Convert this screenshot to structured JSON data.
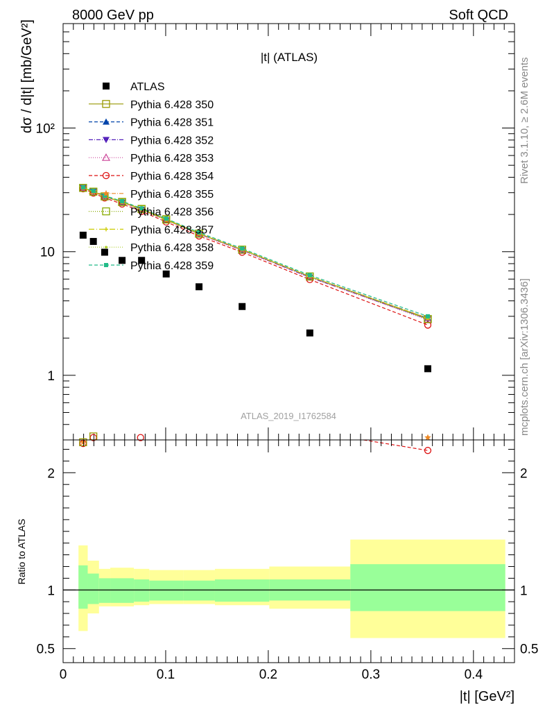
{
  "header": {
    "left": "8000 GeV pp",
    "right": "Soft QCD"
  },
  "side_text": {
    "top": "Rivet 3.1.10, ≥ 2.6M events",
    "bottom": "mcplots.cern.ch [arXiv:1306.3436]"
  },
  "colors": {
    "data": "#000000",
    "ratio_band_inner": "#99ff99",
    "ratio_band_outer": "#ffff99",
    "c350": "#999900",
    "c351": "#0044aa",
    "c352": "#5522bb",
    "c353": "#cc4499",
    "c354": "#dd1111",
    "c355": "#ee8822",
    "c356": "#88aa00",
    "c357": "#cccc00",
    "c358": "#aacc22",
    "c359": "#22bb88"
  },
  "chart_data": [
    {
      "type": "scatter",
      "title": "|t| (ATLAS)",
      "ylabel": "dσ / d|t| [mb/GeV²]",
      "watermark": "ATLAS_2019_I1762584",
      "log_y": true,
      "xlim": [
        0,
        0.44
      ],
      "ylim": [
        0.3,
        700
      ],
      "y_ticks": [
        "1",
        "10",
        "10²"
      ],
      "legend_position": "top-left",
      "data": {
        "name": "ATLAS",
        "x": [
          0.0195,
          0.0295,
          0.0405,
          0.0575,
          0.0765,
          0.1005,
          0.1325,
          0.1745,
          0.2405,
          0.3555
        ],
        "y": [
          13.6,
          12.1,
          9.9,
          8.5,
          8.5,
          6.6,
          5.2,
          3.6,
          2.2,
          1.13
        ]
      },
      "series": [
        {
          "name": "Pythia 6.428 350",
          "marker": "open-square",
          "dash": "solid",
          "x": [
            0.0195,
            0.0295,
            0.0405,
            0.0575,
            0.0765,
            0.1005,
            0.1325,
            0.1745,
            0.2405,
            0.3555
          ],
          "y": [
            32.8,
            30.6,
            28.0,
            25.3,
            22.2,
            18.3,
            14.0,
            10.4,
            6.3,
            2.85
          ]
        },
        {
          "name": "Pythia 6.428 351",
          "marker": "filled-triangle-up",
          "dash": "5,3",
          "x": [
            0.0195,
            0.0295,
            0.0405,
            0.0575,
            0.0765,
            0.1005,
            0.1325,
            0.1745,
            0.2405,
            0.3555
          ],
          "y": [
            33.0,
            30.8,
            28.1,
            25.2,
            22.0,
            18.1,
            14.0,
            10.4,
            6.3,
            2.9
          ]
        },
        {
          "name": "Pythia 6.428 352",
          "marker": "filled-triangle-down",
          "dash": "6,2,1,2",
          "x": [
            0.0195,
            0.0295,
            0.0405,
            0.0575,
            0.0765,
            0.1005,
            0.1325,
            0.1745,
            0.2405,
            0.3555
          ],
          "y": [
            32.9,
            30.7,
            28.0,
            25.1,
            21.9,
            18.0,
            13.9,
            10.3,
            6.2,
            2.85
          ]
        },
        {
          "name": "Pythia 6.428 353",
          "marker": "open-triangle-up",
          "dash": "1,2",
          "x": [
            0.0195,
            0.0295,
            0.0405,
            0.0575,
            0.0765,
            0.1005,
            0.1325,
            0.1745,
            0.2405,
            0.3555
          ],
          "y": [
            32.7,
            30.5,
            27.8,
            25.0,
            21.8,
            18.0,
            13.8,
            10.2,
            6.2,
            2.8
          ]
        },
        {
          "name": "Pythia 6.428 354",
          "marker": "open-circle",
          "dash": "5,3",
          "x": [
            0.0195,
            0.0295,
            0.0405,
            0.0575,
            0.0765,
            0.1005,
            0.1325,
            0.1745,
            0.2405,
            0.3555
          ],
          "y": [
            32.3,
            29.8,
            27.2,
            24.3,
            21.2,
            17.4,
            13.4,
            9.9,
            5.95,
            2.55
          ]
        },
        {
          "name": "Pythia 6.428 355",
          "marker": "star",
          "dash": "6,2,1,2",
          "x": [
            0.0195,
            0.0295,
            0.0405,
            0.0575,
            0.0765,
            0.1005,
            0.1325,
            0.1745,
            0.2405,
            0.3555
          ],
          "y": [
            32.8,
            30.6,
            28.0,
            25.2,
            22.0,
            18.1,
            14.0,
            10.4,
            6.3,
            2.9
          ]
        },
        {
          "name": "Pythia 6.428 356",
          "marker": "open-square",
          "dash": "1,2",
          "x": [
            0.0195,
            0.0295,
            0.0405,
            0.0575,
            0.0765,
            0.1005,
            0.1325,
            0.1745,
            0.2405,
            0.3555
          ],
          "y": [
            32.8,
            30.6,
            28.0,
            25.2,
            22.1,
            18.2,
            14.0,
            10.4,
            6.3,
            2.85
          ]
        },
        {
          "name": "Pythia 6.428 357",
          "marker": "small-cross",
          "dash": "8,3,1,3",
          "x": [
            0.0195,
            0.0295,
            0.0405,
            0.0575,
            0.0765,
            0.1005,
            0.1325,
            0.1745,
            0.2405,
            0.3555
          ],
          "y": [
            32.8,
            30.6,
            28.0,
            25.2,
            22.0,
            18.1,
            14.0,
            10.4,
            6.3,
            2.88
          ]
        },
        {
          "name": "Pythia 6.428 358",
          "marker": "small-dot",
          "dash": "1,2",
          "x": [
            0.0195,
            0.0295,
            0.0405,
            0.0575,
            0.0765,
            0.1005,
            0.1325,
            0.1745,
            0.2405,
            0.3555
          ],
          "y": [
            32.8,
            30.6,
            28.0,
            25.2,
            22.0,
            18.1,
            14.0,
            10.4,
            6.3,
            2.88
          ]
        },
        {
          "name": "Pythia 6.428 359",
          "marker": "filled-square-small",
          "dash": "5,3",
          "x": [
            0.0195,
            0.0295,
            0.0405,
            0.0575,
            0.0765,
            0.1005,
            0.1325,
            0.1745,
            0.2405,
            0.3555
          ],
          "y": [
            33.2,
            31.0,
            28.4,
            25.6,
            22.4,
            18.5,
            14.3,
            10.6,
            6.45,
            3.0
          ]
        }
      ]
    },
    {
      "type": "area",
      "xlabel": "|t| [GeV²]",
      "ylabel": "Ratio to ATLAS",
      "xlim": [
        0,
        0.44
      ],
      "ylim": [
        0.38,
        2.28
      ],
      "x_ticks": [
        "0",
        "0.1",
        "0.2",
        "0.3",
        "0.4"
      ],
      "y_ticks": [
        "0.5",
        "1",
        "2"
      ],
      "reference_line": 1,
      "bands": [
        {
          "x0": 0.015,
          "x1": 0.024,
          "inner": [
            0.84,
            1.21
          ],
          "outer": [
            0.65,
            1.38
          ]
        },
        {
          "x0": 0.024,
          "x1": 0.035,
          "inner": [
            0.88,
            1.14
          ],
          "outer": [
            0.8,
            1.25
          ]
        },
        {
          "x0": 0.035,
          "x1": 0.046,
          "inner": [
            0.89,
            1.1
          ],
          "outer": [
            0.86,
            1.18
          ]
        },
        {
          "x0": 0.046,
          "x1": 0.069,
          "inner": [
            0.89,
            1.1
          ],
          "outer": [
            0.86,
            1.19
          ]
        },
        {
          "x0": 0.069,
          "x1": 0.084,
          "inner": [
            0.9,
            1.09
          ],
          "outer": [
            0.87,
            1.18
          ]
        },
        {
          "x0": 0.084,
          "x1": 0.117,
          "inner": [
            0.91,
            1.08
          ],
          "outer": [
            0.88,
            1.17
          ]
        },
        {
          "x0": 0.117,
          "x1": 0.148,
          "inner": [
            0.91,
            1.08
          ],
          "outer": [
            0.88,
            1.17
          ]
        },
        {
          "x0": 0.148,
          "x1": 0.201,
          "inner": [
            0.9,
            1.09
          ],
          "outer": [
            0.87,
            1.18
          ]
        },
        {
          "x0": 0.201,
          "x1": 0.28,
          "inner": [
            0.91,
            1.09
          ],
          "outer": [
            0.84,
            1.2
          ]
        },
        {
          "x0": 0.28,
          "x1": 0.431,
          "inner": [
            0.82,
            1.22
          ],
          "outer": [
            0.59,
            1.43
          ]
        }
      ],
      "series": [
        {
          "name": "Pythia 6.428 354",
          "x": [
            0.0195,
            0.0295,
            0.0755,
            0.3555
          ],
          "y": [
            2.25,
            2.3,
            2.3,
            2.19
          ]
        },
        {
          "name": "Pythia 6.428 355",
          "x": [
            0.0195,
            0.3555
          ],
          "y": [
            2.26,
            2.3
          ]
        },
        {
          "name": "Pythia 6.428 350",
          "x": [
            0.0195,
            0.0295
          ],
          "y": [
            2.26,
            2.31
          ]
        }
      ]
    }
  ]
}
